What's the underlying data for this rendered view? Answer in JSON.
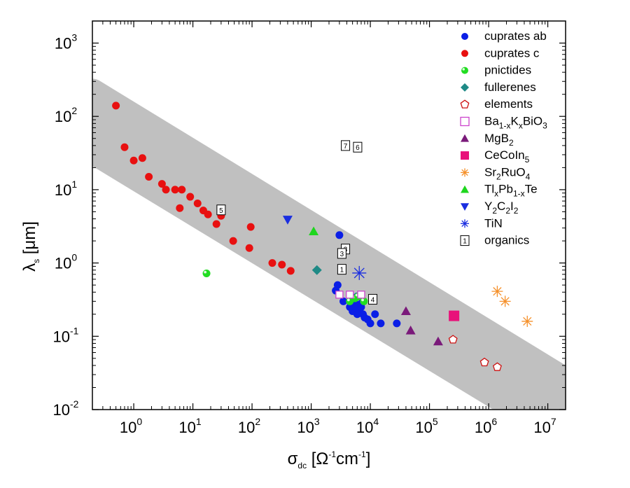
{
  "chart_data": {
    "type": "scatter",
    "x_axis": {
      "scale": "log",
      "range": [
        0.2,
        20000000
      ],
      "ticks": [
        1,
        10,
        100,
        1000,
        10000,
        100000,
        1000000,
        10000000
      ],
      "tick_labels": [
        {
          "base": "10",
          "exp": "0"
        },
        {
          "base": "10",
          "exp": "1"
        },
        {
          "base": "10",
          "exp": "2"
        },
        {
          "base": "10",
          "exp": "3"
        },
        {
          "base": "10",
          "exp": "4"
        },
        {
          "base": "10",
          "exp": "5"
        },
        {
          "base": "10",
          "exp": "6"
        },
        {
          "base": "10",
          "exp": "7"
        }
      ],
      "label": {
        "symbol": "σ",
        "sub": "dc",
        "unit_open": " [Ω",
        "unit_sup1": "-1",
        "unit_mid": "cm",
        "unit_sup2": "-1",
        "unit_close": "]"
      }
    },
    "y_axis": {
      "scale": "log",
      "range": [
        0.01,
        2000
      ],
      "ticks": [
        0.01,
        0.1,
        1,
        10,
        100,
        1000
      ],
      "tick_labels": [
        {
          "base": "10",
          "exp": "-2"
        },
        {
          "base": "10",
          "exp": "-1"
        },
        {
          "base": "10",
          "exp": "0"
        },
        {
          "base": "10",
          "exp": "1"
        },
        {
          "base": "10",
          "exp": "2"
        },
        {
          "base": "10",
          "exp": "3"
        }
      ],
      "label": {
        "symbol": "λ",
        "sub": "s",
        "unit": " [μm]"
      }
    },
    "band": {
      "color": "#c0c0c0",
      "upper": [
        [
          0.2,
          210
        ],
        [
          20000000,
          0.024
        ]
      ],
      "lower": [
        [
          0.2,
          35
        ],
        [
          20000000,
          0.0042
        ]
      ]
    },
    "legend_placement": "top-right",
    "series": [
      {
        "name": "cuprates ab",
        "marker": "circle",
        "color": "#0a1ee6",
        "points": [
          [
            3000,
            2.4
          ],
          [
            2800,
            0.5
          ],
          [
            3500,
            0.3
          ],
          [
            5000,
            0.33
          ],
          [
            5500,
            0.28
          ],
          [
            6000,
            0.35
          ],
          [
            6500,
            0.22
          ],
          [
            7000,
            0.25
          ],
          [
            7500,
            0.2
          ],
          [
            5000,
            0.22
          ],
          [
            6000,
            0.2
          ],
          [
            4500,
            0.25
          ],
          [
            8000,
            0.18
          ],
          [
            9000,
            0.17
          ],
          [
            10000,
            0.15
          ],
          [
            12000,
            0.2
          ],
          [
            15000,
            0.15
          ],
          [
            28000,
            0.15
          ],
          [
            2600,
            0.42
          ],
          [
            5500,
            0.25
          ],
          [
            7000,
            0.28
          ]
        ]
      },
      {
        "name": "cuprates c",
        "marker": "circle",
        "color": "#e81010",
        "points": [
          [
            0.5,
            140
          ],
          [
            0.7,
            38
          ],
          [
            1,
            25
          ],
          [
            1.4,
            27
          ],
          [
            1.8,
            15
          ],
          [
            3,
            12
          ],
          [
            3.5,
            10
          ],
          [
            5,
            10
          ],
          [
            6.5,
            10
          ],
          [
            6,
            5.6
          ],
          [
            9,
            8
          ],
          [
            12,
            6.5
          ],
          [
            15,
            5.2
          ],
          [
            18,
            4.6
          ],
          [
            30,
            4.4
          ],
          [
            25,
            3.4
          ],
          [
            48,
            2
          ],
          [
            90,
            1.6
          ],
          [
            95,
            3.1
          ],
          [
            220,
            1
          ],
          [
            320,
            0.95
          ],
          [
            450,
            0.78
          ]
        ]
      },
      {
        "name": "pnictides",
        "marker": "sphere",
        "color": "#22dd22",
        "points": [
          [
            17,
            0.72
          ],
          [
            4500,
            0.3
          ],
          [
            5500,
            0.33
          ],
          [
            6200,
            0.35
          ],
          [
            7800,
            0.3
          ]
        ]
      },
      {
        "name": "fullerenes",
        "marker": "diamond",
        "color": "#1f8a86",
        "points": [
          [
            1250,
            0.8
          ]
        ]
      },
      {
        "name": "elements",
        "marker": "pentagon-open",
        "color": "#cc1111",
        "points": [
          [
            250000,
            0.09
          ],
          [
            850000,
            0.044
          ],
          [
            1400000,
            0.038
          ]
        ]
      },
      {
        "name": "Ba1-xKxBiO3",
        "label": {
          "a": "Ba",
          "s1": "1-x",
          "b": "K",
          "s2": "x",
          "c": "BiO",
          "s3": "3"
        },
        "marker": "square-open",
        "color": "#cc44cc",
        "points": [
          [
            3000,
            0.37
          ],
          [
            4500,
            0.37
          ],
          [
            7000,
            0.37
          ]
        ]
      },
      {
        "name": "MgB2",
        "label": {
          "a": "MgB",
          "s1": "2"
        },
        "marker": "triangle",
        "color": "#7a1a7a",
        "points": [
          [
            40000,
            0.22
          ],
          [
            48000,
            0.12
          ],
          [
            140000,
            0.085
          ]
        ]
      },
      {
        "name": "CeCoIn5",
        "label": {
          "a": "CeCoIn",
          "s1": "5"
        },
        "marker": "square",
        "color": "#e8127a",
        "points": [
          [
            260000,
            0.19
          ]
        ]
      },
      {
        "name": "Sr2RuO4",
        "label": {
          "a": "Sr",
          "s1": "2",
          "b": "RuO",
          "s2": "4"
        },
        "marker": "star",
        "color": "#f5902a",
        "points": [
          [
            1400000,
            0.41
          ],
          [
            1900000,
            0.3
          ],
          [
            4500000,
            0.16
          ]
        ]
      },
      {
        "name": "TlxPb1-xTe",
        "label": {
          "a": "Tl",
          "s1": "x",
          "b": "Pb",
          "s2": "1-x",
          "c": "Te"
        },
        "marker": "triangle",
        "color": "#1ed61e",
        "points": [
          [
            1100,
            2.7
          ]
        ]
      },
      {
        "name": "Y2C2I2",
        "label": {
          "a": "Y",
          "s1": "2",
          "b": "C",
          "s2": "2",
          "c": "I",
          "s3": "2"
        },
        "marker": "triangle-down",
        "color": "#1a2ee0",
        "points": [
          [
            400,
            3.9
          ]
        ]
      },
      {
        "name": "TiN",
        "marker": "star",
        "color": "#1a2ee0",
        "points": [
          [
            6500,
            0.73
          ]
        ]
      },
      {
        "name": "organics",
        "marker": "boxed-label",
        "color": "#000000",
        "points": [
          [
            3800,
            40,
            "7"
          ],
          [
            6100,
            38,
            "6"
          ],
          [
            30,
            5.3,
            "5"
          ],
          [
            3800,
            1.55,
            "3"
          ],
          [
            3300,
            1.35,
            "3"
          ],
          [
            3300,
            0.82,
            "1"
          ],
          [
            11000,
            0.32,
            "4"
          ]
        ]
      }
    ]
  }
}
